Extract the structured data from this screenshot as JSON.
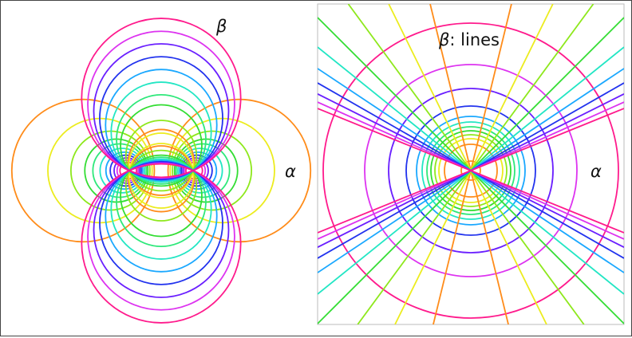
{
  "palette": [
    "#ff8c1a",
    "#ecec1e",
    "#8ee81c",
    "#33dd33",
    "#2ee87a",
    "#22e6c4",
    "#1aa8ff",
    "#2233ee",
    "#6a1fff",
    "#dd33f0",
    "#ff1a8c"
  ],
  "left_panel": {
    "label_beta": "β",
    "label_alpha": "α",
    "alpha_levels": [
      0.434,
      0.579,
      0.739,
      0.89,
      1.013,
      1.159,
      1.317,
      1.47,
      1.65,
      1.83,
      2.06
    ],
    "beta_levels": [
      1.822,
      1.41,
      1.131,
      0.903,
      0.796,
      0.692,
      0.611,
      0.546,
      0.493,
      0.45,
      0.413
    ]
  },
  "right_panel": {
    "label_beta_symbol": "β",
    "label_beta_text": ": lines",
    "label_alpha": "α",
    "line_angles_deg": [
      76.3,
      63.8,
      53.7,
      45,
      38.9,
      33.7,
      29.8,
      26.6,
      24.1,
      22.1
    ],
    "line_colors": [
      "#ff8c1a",
      "#ecec1e",
      "#8ee81c",
      "#33dd33",
      "#22e6c4",
      "#1aa8ff",
      "#2233ee",
      "#6a1fff",
      "#dd33f0",
      "#ff1a8c"
    ],
    "circle_levels": [
      12,
      33,
      40,
      45,
      50,
      55,
      61,
      68,
      81,
      103,
      133,
      185
    ]
  }
}
